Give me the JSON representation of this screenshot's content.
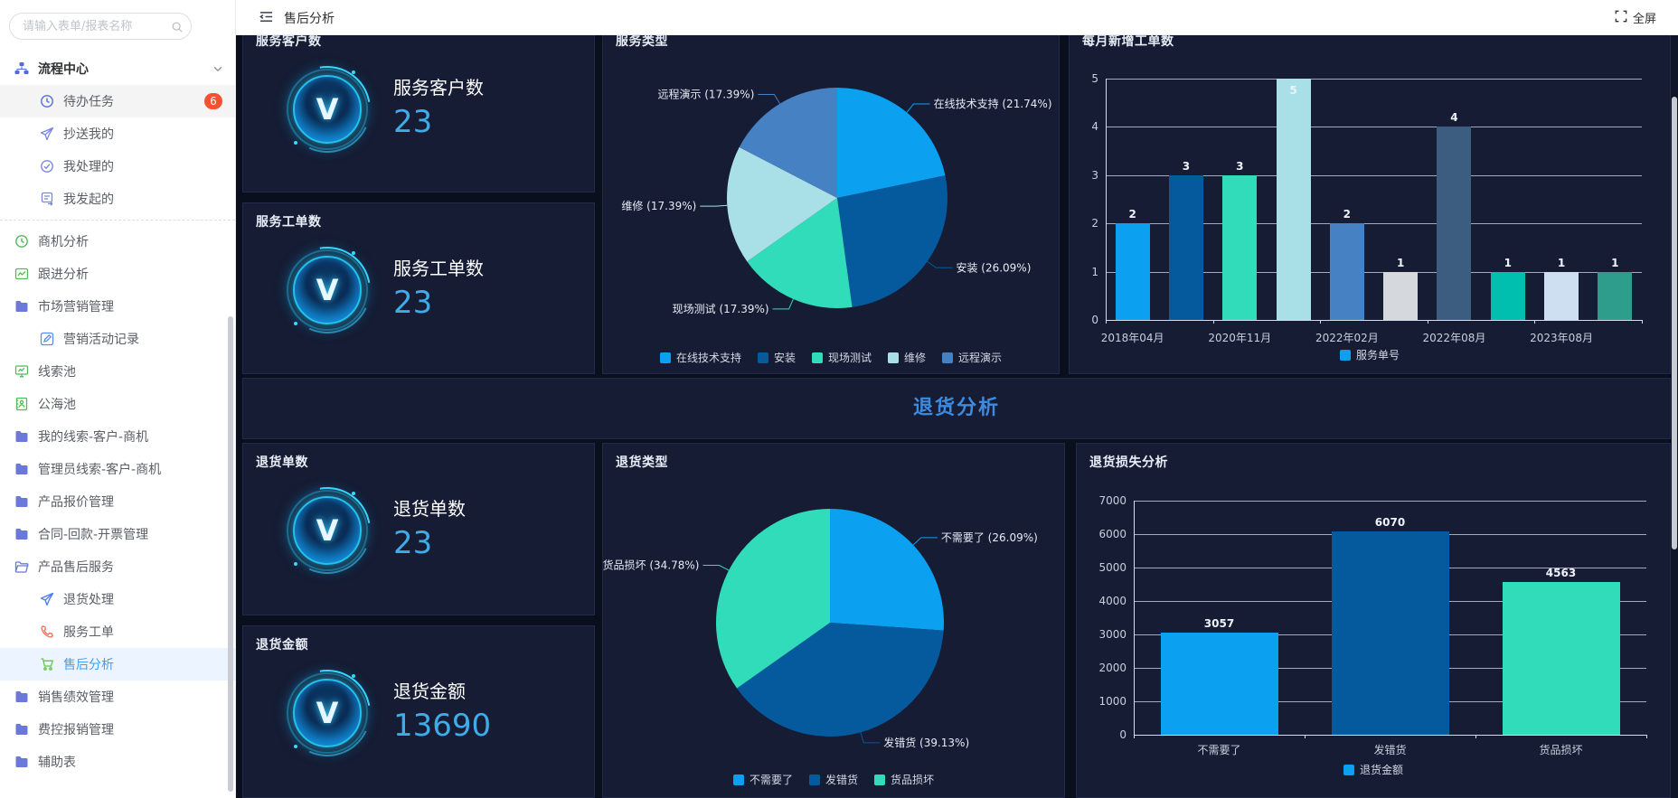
{
  "logo_letter": "V",
  "colors": {
    "accent_blue": "#409eff",
    "number_blue": "#3fabe8",
    "section_title_blue": "#3d8be0",
    "badge_red": "#f5532f",
    "panel_bg": "#151c33",
    "outer_bg": "#0a0f1e"
  },
  "sidebar": {
    "search_placeholder": "请输入表单/报表名称",
    "items": [
      {
        "key": "process-center",
        "label": "流程中心",
        "icon": "sitemap",
        "color": "#5968d8",
        "section": true,
        "chevron": true
      },
      {
        "key": "todo-tasks",
        "label": "待办任务",
        "icon": "clock",
        "color": "#5968d8",
        "indent": 1,
        "active": "gray",
        "badge": "6"
      },
      {
        "key": "cc-to-me",
        "label": "抄送我的",
        "icon": "send",
        "color": "#7b86e2",
        "indent": 1
      },
      {
        "key": "handled-by-me",
        "label": "我处理的",
        "icon": "check",
        "color": "#7b86e2",
        "indent": 1
      },
      {
        "key": "initiated-by-me",
        "label": "我发起的",
        "icon": "file",
        "color": "#7b86e2",
        "indent": 1,
        "divider_after": true
      },
      {
        "key": "opportunity-analysis",
        "label": "商机分析",
        "icon": "clock",
        "color": "#52b95c"
      },
      {
        "key": "follow-up-analysis",
        "label": "跟进分析",
        "icon": "chart",
        "color": "#52b95c"
      },
      {
        "key": "marketing-mgmt",
        "label": "市场营销管理",
        "icon": "folder",
        "color": "#6a79d8"
      },
      {
        "key": "marketing-activity-records",
        "label": "营销活动记录",
        "icon": "pen",
        "color": "#5b8bef",
        "indent": 1
      },
      {
        "key": "lead-pool",
        "label": "线索池",
        "icon": "monitor",
        "color": "#52b95c"
      },
      {
        "key": "public-sea-pool",
        "label": "公海池",
        "icon": "book",
        "color": "#52b95c"
      },
      {
        "key": "my-leads-customers-opps",
        "label": "我的线索-客户-商机",
        "icon": "folder",
        "color": "#6a79d8"
      },
      {
        "key": "admin-leads-customers-opps",
        "label": "管理员线索-客户-商机",
        "icon": "folder",
        "color": "#6a79d8"
      },
      {
        "key": "product-quotation-mgmt",
        "label": "产品报价管理",
        "icon": "folder",
        "color": "#6a79d8"
      },
      {
        "key": "contract-payment-invoice",
        "label": "合同-回款-开票管理",
        "icon": "folder",
        "color": "#6a79d8"
      },
      {
        "key": "product-after-sales",
        "label": "产品售后服务",
        "icon": "folderOpen",
        "color": "#6a79d8"
      },
      {
        "key": "return-processing",
        "label": "退货处理",
        "icon": "send",
        "color": "#4a7bf0",
        "indent": 1
      },
      {
        "key": "service-work-order",
        "label": "服务工单",
        "icon": "phone",
        "color": "#f0705a",
        "indent": 1
      },
      {
        "key": "after-sales-analysis",
        "label": "售后分析",
        "icon": "cart",
        "color": "#6cc24a",
        "indent": 1,
        "active": "blue"
      },
      {
        "key": "sales-performance-mgmt",
        "label": "销售绩效管理",
        "icon": "folder",
        "color": "#6a79d8"
      },
      {
        "key": "expense-reimbursement-mgmt",
        "label": "费控报销管理",
        "icon": "folder",
        "color": "#6a79d8"
      },
      {
        "key": "auxiliary-table",
        "label": "辅助表",
        "icon": "folder",
        "color": "#6a79d8"
      }
    ]
  },
  "topbar": {
    "title": "售后分析",
    "fullscreen_label": "全屏"
  },
  "stat_cards": [
    {
      "key": "service-customers",
      "panel_title": "服务客户数",
      "label": "服务客户数",
      "value": "23"
    },
    {
      "key": "service-work-orders",
      "panel_title": "服务工单数",
      "label": "服务工单数",
      "value": "23"
    },
    {
      "key": "return-orders",
      "panel_title": "退货单数",
      "label": "退货单数",
      "value": "23"
    },
    {
      "key": "return-amount",
      "panel_title": "退货金额",
      "label": "退货金额",
      "value": "13690"
    }
  ],
  "section2_title": "退货分析",
  "chart_data": [
    {
      "id": "service-type-pie",
      "type": "pie",
      "title": "服务类型",
      "slices": [
        {
          "label": "在线技术支持",
          "pct": 21.74,
          "display": "在线技术支持 (21.74%)",
          "color": "#0ba0f0"
        },
        {
          "label": "安装",
          "pct": 26.09,
          "display": "安装 (26.09%)",
          "color": "#055a9d"
        },
        {
          "label": "现场测试",
          "pct": 17.39,
          "display": "现场测试 (17.39%)",
          "color": "#31dcba"
        },
        {
          "label": "维修",
          "pct": 17.39,
          "display": "维修 (17.39%)",
          "color": "#a9e0e8"
        },
        {
          "label": "远程演示",
          "pct": 17.39,
          "display": "远程演示 (17.39%)",
          "color": "#4681c4"
        }
      ],
      "legend": [
        "在线技术支持",
        "安装",
        "现场测试",
        "维修",
        "远程演示"
      ],
      "legend_position": "bottom"
    },
    {
      "id": "monthly-work-orders-bar",
      "type": "bar",
      "title": "每月新增工单数",
      "categories": [
        "2018年04月",
        "",
        "2020年11月",
        "",
        "2022年02月",
        "",
        "2022年08月",
        "",
        "2023年08月",
        ""
      ],
      "values": [
        2,
        3,
        3,
        5,
        2,
        1,
        4,
        1,
        1,
        1
      ],
      "bar_colors": [
        "#0ba0f0",
        "#055a9d",
        "#31dcba",
        "#a9e0e8",
        "#4681c4",
        "#d5d9de",
        "#3c5c80",
        "#00bfae",
        "#cfdff2",
        "#2f9d8c"
      ],
      "series_name": "服务单号",
      "ylim": [
        0,
        5
      ],
      "yticks": [
        0,
        1,
        2,
        3,
        4,
        5
      ],
      "legend": [
        "服务单号"
      ],
      "legend_color": "#0ba0f0",
      "grid": true,
      "legend_position": "bottom"
    },
    {
      "id": "return-type-pie",
      "type": "pie",
      "title": "退货类型",
      "slices": [
        {
          "label": "不需要了",
          "pct": 26.09,
          "display": "不需要了 (26.09%)",
          "color": "#0ba0f0"
        },
        {
          "label": "发错货",
          "pct": 39.13,
          "display": "发错货 (39.13%)",
          "color": "#055a9d"
        },
        {
          "label": "货品损坏",
          "pct": 34.78,
          "display": "货品损坏 (34.78%)",
          "color": "#31dcba"
        }
      ],
      "legend": [
        "不需要了",
        "发错货",
        "货品损坏"
      ],
      "legend_position": "bottom"
    },
    {
      "id": "return-loss-bar",
      "type": "bar",
      "title": "退货损失分析",
      "categories": [
        "不需要了",
        "发错货",
        "货品损坏"
      ],
      "values": [
        3057,
        6070,
        4563
      ],
      "bar_colors": [
        "#0ba0f0",
        "#055a9d",
        "#31dcba"
      ],
      "series_name": "退货金额",
      "ylim": [
        0,
        7000
      ],
      "yticks": [
        0,
        1000,
        2000,
        3000,
        4000,
        5000,
        6000,
        7000
      ],
      "legend": [
        "退货金额"
      ],
      "legend_color": "#0ba0f0",
      "grid": true,
      "legend_position": "bottom"
    }
  ]
}
